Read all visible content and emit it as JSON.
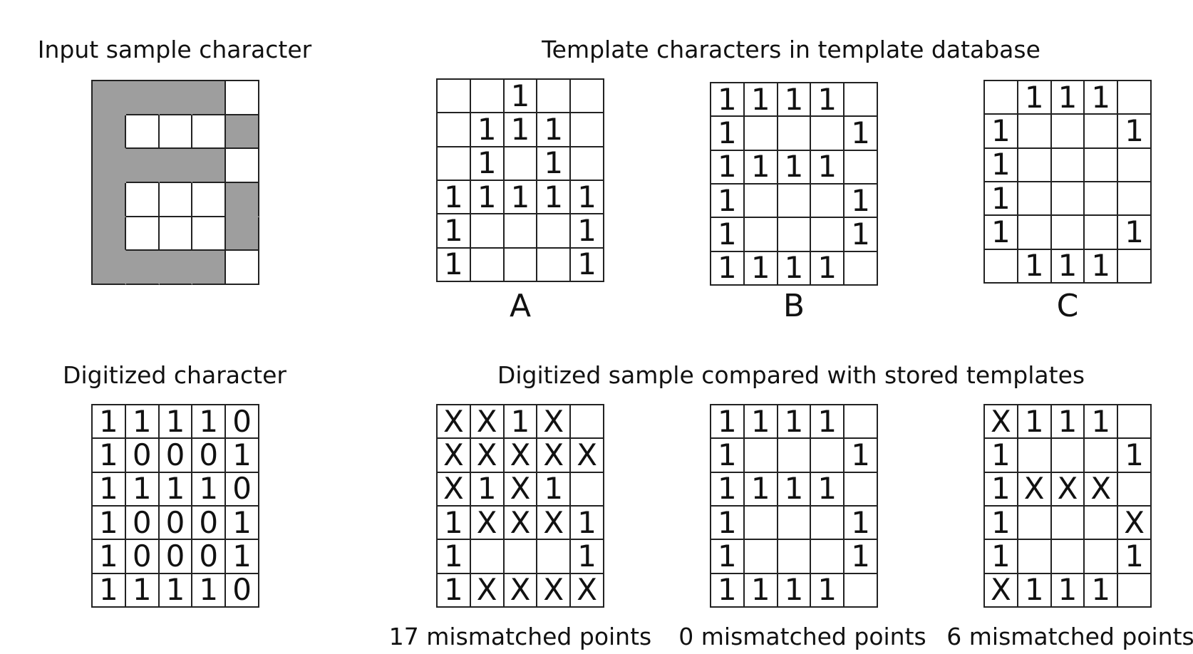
{
  "top_left_label": "Input sample character",
  "top_right_label": "Template characters in template database",
  "bottom_left_label": "Digitized character",
  "bottom_right_label": "Digitized sample compared with stored templates",
  "input_sample": {
    "shade_color": "#9e9e9e",
    "shaded": [
      [
        1,
        1,
        1,
        1,
        0
      ],
      [
        1,
        0,
        0,
        0,
        1
      ],
      [
        1,
        1,
        1,
        1,
        0
      ],
      [
        1,
        0,
        0,
        0,
        1
      ],
      [
        1,
        0,
        0,
        0,
        1
      ],
      [
        1,
        1,
        1,
        1,
        0
      ]
    ]
  },
  "templates": [
    {
      "letter": "A",
      "cells": [
        [
          "",
          "",
          "1",
          "",
          ""
        ],
        [
          "",
          "1",
          "1",
          "1",
          ""
        ],
        [
          "",
          "1",
          "",
          "1",
          ""
        ],
        [
          "1",
          "1",
          "1",
          "1",
          "1"
        ],
        [
          "1",
          "",
          "",
          "",
          "1"
        ],
        [
          "1",
          "",
          "",
          "",
          "1"
        ]
      ]
    },
    {
      "letter": "B",
      "cells": [
        [
          "1",
          "1",
          "1",
          "1",
          ""
        ],
        [
          "1",
          "",
          "",
          "",
          "1"
        ],
        [
          "1",
          "1",
          "1",
          "1",
          ""
        ],
        [
          "1",
          "",
          "",
          "",
          "1"
        ],
        [
          "1",
          "",
          "",
          "",
          "1"
        ],
        [
          "1",
          "1",
          "1",
          "1",
          ""
        ]
      ]
    },
    {
      "letter": "C",
      "cells": [
        [
          "",
          "1",
          "1",
          "1",
          ""
        ],
        [
          "1",
          "",
          "",
          "",
          "1"
        ],
        [
          "1",
          "",
          "",
          "",
          ""
        ],
        [
          "1",
          "",
          "",
          "",
          ""
        ],
        [
          "1",
          "",
          "",
          "",
          "1"
        ],
        [
          "",
          "1",
          "1",
          "1",
          ""
        ]
      ]
    }
  ],
  "digitized": {
    "cells": [
      [
        "1",
        "1",
        "1",
        "1",
        "0"
      ],
      [
        "1",
        "0",
        "0",
        "0",
        "1"
      ],
      [
        "1",
        "1",
        "1",
        "1",
        "0"
      ],
      [
        "1",
        "0",
        "0",
        "0",
        "1"
      ],
      [
        "1",
        "0",
        "0",
        "0",
        "1"
      ],
      [
        "1",
        "1",
        "1",
        "1",
        "0"
      ]
    ]
  },
  "comparisons": [
    {
      "caption": "17 mismatched points",
      "cells": [
        [
          "X",
          "X",
          "1",
          "X",
          ""
        ],
        [
          "X",
          "X",
          "X",
          "X",
          "X"
        ],
        [
          "X",
          "1",
          "X",
          "1",
          ""
        ],
        [
          "1",
          "X",
          "X",
          "X",
          "1"
        ],
        [
          "1",
          "",
          "",
          "",
          "1"
        ],
        [
          "1",
          "X",
          "X",
          "X",
          "X"
        ]
      ]
    },
    {
      "caption": "0 mismatched points",
      "cells": [
        [
          "1",
          "1",
          "1",
          "1",
          ""
        ],
        [
          "1",
          "",
          "",
          "",
          "1"
        ],
        [
          "1",
          "1",
          "1",
          "1",
          ""
        ],
        [
          "1",
          "",
          "",
          "",
          "1"
        ],
        [
          "1",
          "",
          "",
          "",
          "1"
        ],
        [
          "1",
          "1",
          "1",
          "1",
          ""
        ]
      ]
    },
    {
      "caption": "6 mismatched points",
      "cells": [
        [
          "X",
          "1",
          "1",
          "1",
          ""
        ],
        [
          "1",
          "",
          "",
          "",
          "1"
        ],
        [
          "1",
          "X",
          "X",
          "X",
          ""
        ],
        [
          "1",
          "",
          "",
          "",
          "X"
        ],
        [
          "1",
          "",
          "",
          "",
          "1"
        ],
        [
          "X",
          "1",
          "1",
          "1",
          ""
        ]
      ]
    }
  ]
}
